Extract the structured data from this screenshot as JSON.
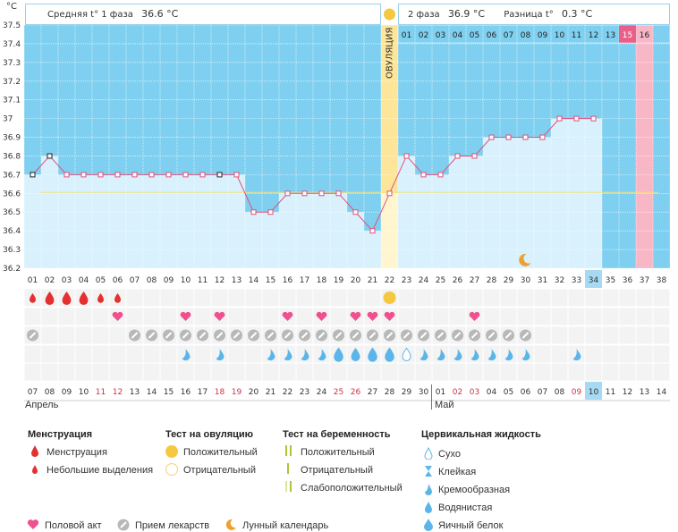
{
  "unit_label": "°C",
  "header": {
    "phase1_label": "Средняя t° 1 фаза",
    "phase1_value": "36.6 °C",
    "phase2_label": "2 фаза",
    "phase2_value": "36.9 °C",
    "diff_label": "Разница t°",
    "diff_value": "0.3 °C"
  },
  "ovulation_label": "ОВУЛЯЦИЯ",
  "chart_data": {
    "type": "line",
    "ylim": [
      36.2,
      37.5
    ],
    "y_ticks": [
      "37.5",
      "37.4",
      "37.3",
      "37.2",
      "37.1",
      "37",
      "36.9",
      "36.8",
      "36.7",
      "36.6",
      "36.5",
      "36.4",
      "36.3",
      "36.2"
    ],
    "cycle_days": [
      "01",
      "02",
      "03",
      "04",
      "05",
      "06",
      "07",
      "08",
      "09",
      "10",
      "11",
      "12",
      "13",
      "14",
      "15",
      "16",
      "17",
      "18",
      "19",
      "20",
      "21",
      "22",
      "23",
      "24",
      "25",
      "26",
      "27",
      "28",
      "29",
      "30",
      "31",
      "32",
      "33",
      "34",
      "35",
      "36",
      "37",
      "38"
    ],
    "temperatures": [
      36.7,
      36.8,
      36.7,
      36.7,
      36.7,
      36.7,
      36.7,
      36.7,
      36.7,
      36.7,
      36.7,
      36.7,
      36.7,
      36.5,
      36.5,
      36.6,
      36.6,
      36.6,
      36.6,
      36.5,
      36.4,
      36.6,
      36.8,
      36.7,
      36.7,
      36.8,
      36.8,
      36.9,
      36.9,
      36.9,
      36.9,
      37.0,
      37.0,
      37.0
    ],
    "open_markers_days": [
      1,
      2,
      12
    ],
    "coverline": 36.6,
    "ovulation_day": 22,
    "current_day": 34,
    "luteal_numbers": [
      "01",
      "02",
      "03",
      "04",
      "05",
      "06",
      "07",
      "08",
      "09",
      "10",
      "11",
      "12",
      "13",
      "15",
      "16"
    ],
    "highlight_luteal": "15",
    "calendar_dates": [
      "07",
      "08",
      "09",
      "10",
      "11",
      "12",
      "13",
      "14",
      "15",
      "16",
      "17",
      "18",
      "19",
      "20",
      "21",
      "22",
      "23",
      "24",
      "25",
      "26",
      "27",
      "28",
      "29",
      "30",
      "01",
      "02",
      "03",
      "04",
      "05",
      "06",
      "07",
      "08",
      "09",
      "10",
      "11",
      "12",
      "13",
      "14"
    ],
    "weekend_dates_idx": [
      4,
      5,
      11,
      12,
      18,
      19,
      25,
      26,
      32
    ],
    "month_start_label": "Апрель",
    "month_next_label": "Май"
  },
  "markers": {
    "menstruation_heavy_days": [
      2,
      3,
      4
    ],
    "menstruation_light_days": [
      1,
      5,
      6
    ],
    "ovulation_positive_day": 22,
    "intercourse_days": [
      6,
      10,
      12,
      16,
      18,
      20,
      21,
      22,
      27
    ],
    "medication_days": [
      1,
      7,
      8,
      9,
      10,
      11,
      12,
      13,
      14,
      15,
      16,
      17,
      18,
      19,
      20,
      21,
      22,
      23,
      24,
      25,
      26,
      27,
      28,
      29,
      30
    ],
    "cervical_creamy_days": [
      10,
      12,
      15,
      16,
      17,
      18,
      19,
      20,
      23,
      24,
      25,
      26,
      27,
      28,
      29,
      30,
      33
    ],
    "cervical_eggwhite_days": [
      19,
      21,
      22
    ],
    "cervical_watery_days": [
      20
    ],
    "cervical_dry_days": [
      23
    ],
    "moon_day": 30
  },
  "legend": {
    "menstruation_title": "Менструация",
    "menstruation_items": [
      "Менструация",
      "Небольшие выделения"
    ],
    "ovulation_test_title": "Тест на овуляцию",
    "ovulation_test_items": [
      "Положительный",
      "Отрицательный"
    ],
    "pregnancy_test_title": "Тест на беременность",
    "pregnancy_test_items": [
      "Положительный",
      "Отрицательный",
      "Слабоположительный"
    ],
    "cervical_title": "Цервикальная жидкость",
    "cervical_items": [
      "Сухо",
      "Клейкая",
      "Кремообразная",
      "Водянистая",
      "Яичный белок"
    ],
    "bottom_items": [
      "Половой акт",
      "Прием лекарств",
      "Лунный календарь"
    ]
  },
  "colors": {
    "sky": "#7fd0f0",
    "bar_fill": "#d8f1fd",
    "line": "#e0507a",
    "ovulation_band": "#fde69a",
    "pink_band": "#f7b7c7",
    "heart": "#f0508f",
    "drop_red": "#e53030",
    "drop_blue": "#5ab5e8",
    "sun": "#f5c842"
  }
}
